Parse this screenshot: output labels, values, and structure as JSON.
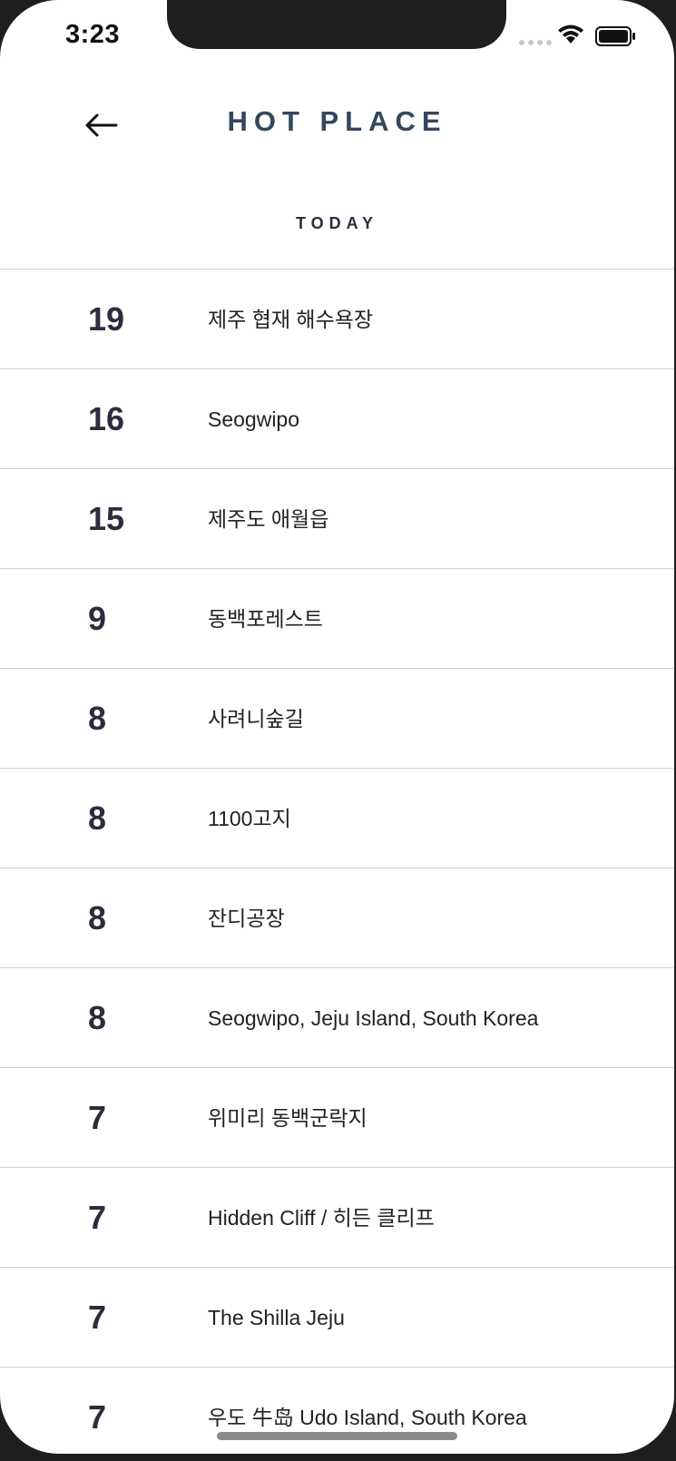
{
  "status_bar": {
    "time": "3:23"
  },
  "header": {
    "title": "HOT PLACE",
    "back_icon": "arrow-left-icon"
  },
  "section": {
    "label": "TODAY"
  },
  "places": [
    {
      "count": "19",
      "name": "제주 협재 해수욕장"
    },
    {
      "count": "16",
      "name": "Seogwipo"
    },
    {
      "count": "15",
      "name": "제주도 애월읍"
    },
    {
      "count": "9",
      "name": "동백포레스트"
    },
    {
      "count": "8",
      "name": "사려니숲길"
    },
    {
      "count": "8",
      "name": "1100고지"
    },
    {
      "count": "8",
      "name": "잔디공장"
    },
    {
      "count": "8",
      "name": "Seogwipo, Jeju Island, South Korea"
    },
    {
      "count": "7",
      "name": "위미리 동백군락지"
    },
    {
      "count": "7",
      "name": "Hidden Cliff / 히든 클리프"
    },
    {
      "count": "7",
      "name": "The Shilla Jeju"
    },
    {
      "count": "7",
      "name": "우도 牛岛 Udo Island, South Korea"
    }
  ],
  "colors": {
    "title": "#34475e",
    "count": "#2b2d3e",
    "divider": "#cfcfd4"
  }
}
